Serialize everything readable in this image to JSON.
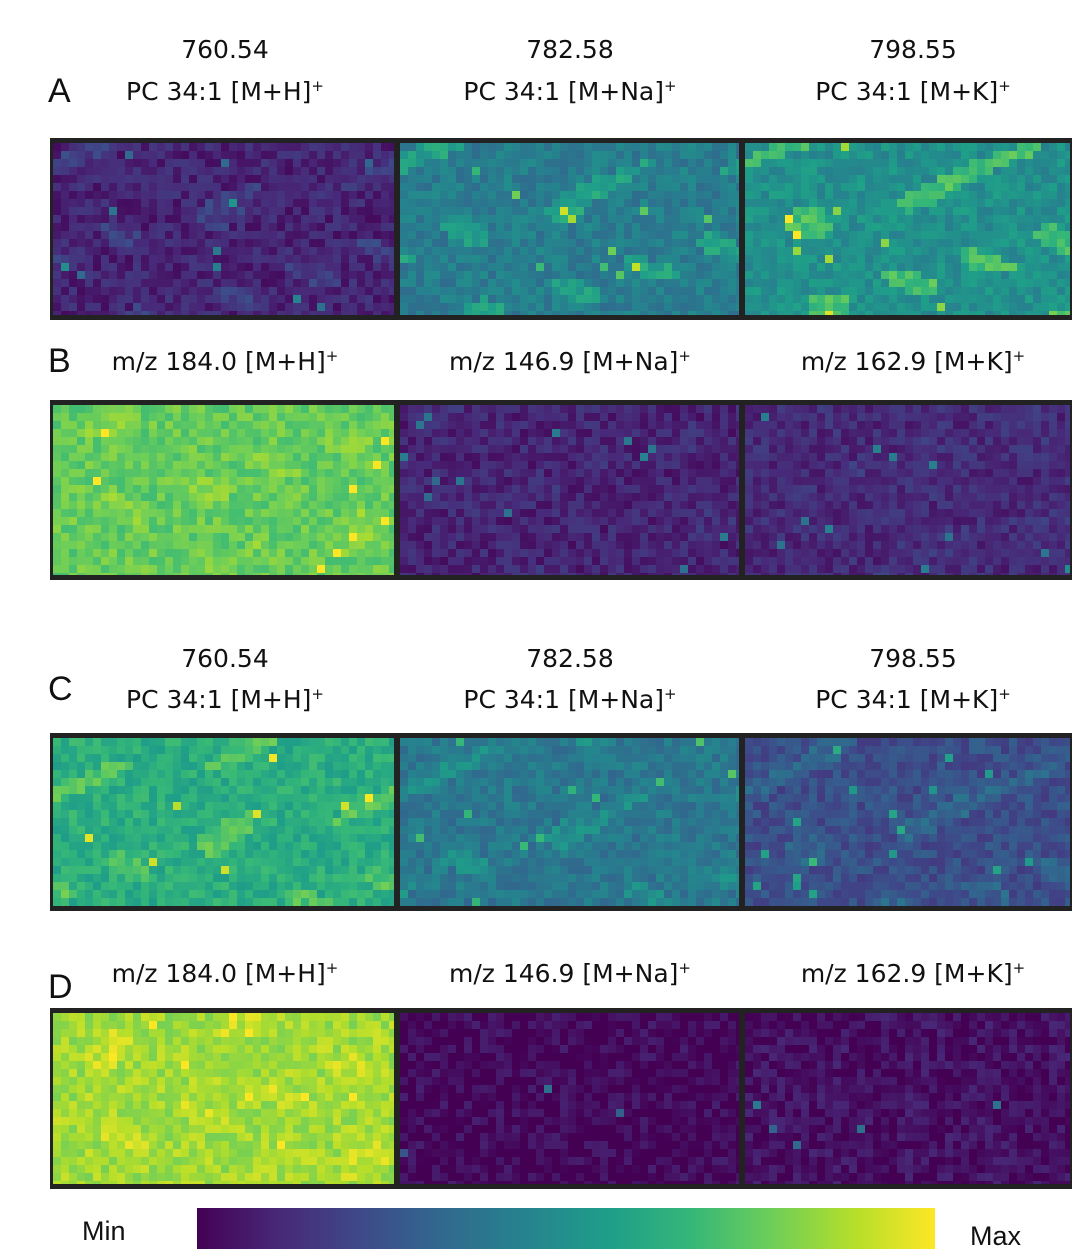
{
  "panels": [
    {
      "letter": "A",
      "images": [
        {
          "mz": "760.54",
          "label": "PC 34:1 [M+H]",
          "charge": "+"
        },
        {
          "mz": "782.58",
          "label": "PC 34:1 [M+Na]",
          "charge": "+"
        },
        {
          "mz": "798.55",
          "label": "PC 34:1 [M+K]",
          "charge": "+"
        }
      ]
    },
    {
      "letter": "B",
      "images": [
        {
          "label": "m/z 184.0 [M+H]",
          "charge": "+"
        },
        {
          "label": "m/z 146.9 [M+Na]",
          "charge": "+"
        },
        {
          "label": "m/z 162.9 [M+K]",
          "charge": "+"
        }
      ]
    },
    {
      "letter": "C",
      "images": [
        {
          "mz": "760.54",
          "label": "PC 34:1 [M+H]",
          "charge": "+"
        },
        {
          "mz": "782.58",
          "label": "PC 34:1 [M+Na]",
          "charge": "+"
        },
        {
          "mz": "798.55",
          "label": "PC 34:1 [M+K]",
          "charge": "+"
        }
      ]
    },
    {
      "letter": "D",
      "images": [
        {
          "label": "m/z 184.0 [M+H]",
          "charge": "+"
        },
        {
          "label": "m/z 146.9 [M+Na]",
          "charge": "+"
        },
        {
          "label": "m/z 162.9 [M+K]",
          "charge": "+"
        }
      ]
    }
  ],
  "colorbar": {
    "min": "Min",
    "max": "Max"
  }
}
